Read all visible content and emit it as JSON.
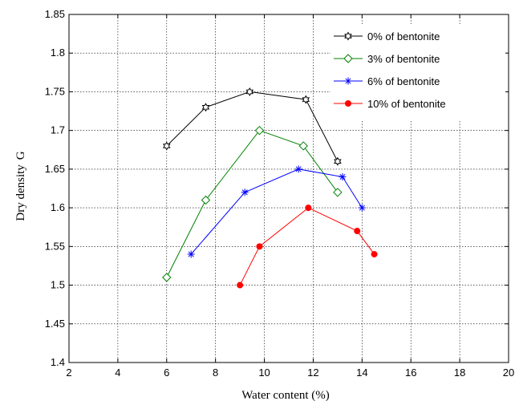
{
  "chart_data": {
    "type": "line",
    "xlabel": "Water content (%)",
    "ylabel": "Dry density",
    "ylabel_symbol": "G",
    "xlim": [
      2,
      20
    ],
    "ylim": [
      1.4,
      1.85
    ],
    "x_ticks": [
      2,
      4,
      6,
      8,
      10,
      12,
      14,
      16,
      18,
      20
    ],
    "y_ticks": [
      1.4,
      1.45,
      1.5,
      1.55,
      1.6,
      1.65,
      1.7,
      1.75,
      1.8,
      1.85
    ],
    "grid": true,
    "legend_position": "top-right",
    "series": [
      {
        "name": "0% of bentonite",
        "color": "#000000",
        "marker": "hexagram",
        "x": [
          6,
          7.6,
          9.4,
          11.7,
          13
        ],
        "y": [
          1.68,
          1.73,
          1.75,
          1.74,
          1.66
        ]
      },
      {
        "name": "3% of bentonite",
        "color": "#008000",
        "marker": "diamond",
        "x": [
          6,
          7.6,
          9.8,
          11.6,
          13
        ],
        "y": [
          1.51,
          1.61,
          1.7,
          1.68,
          1.62
        ]
      },
      {
        "name": "6% of bentonite",
        "color": "#0000ff",
        "marker": "asterisk",
        "x": [
          7,
          9.2,
          11.4,
          13.2,
          14
        ],
        "y": [
          1.54,
          1.62,
          1.65,
          1.64,
          1.6
        ]
      },
      {
        "name": "10% of bentonite",
        "color": "#ff0000",
        "marker": "dot",
        "x": [
          9,
          9.8,
          11.8,
          13.8,
          14.5
        ],
        "y": [
          1.5,
          1.55,
          1.6,
          1.57,
          1.54
        ]
      }
    ]
  }
}
